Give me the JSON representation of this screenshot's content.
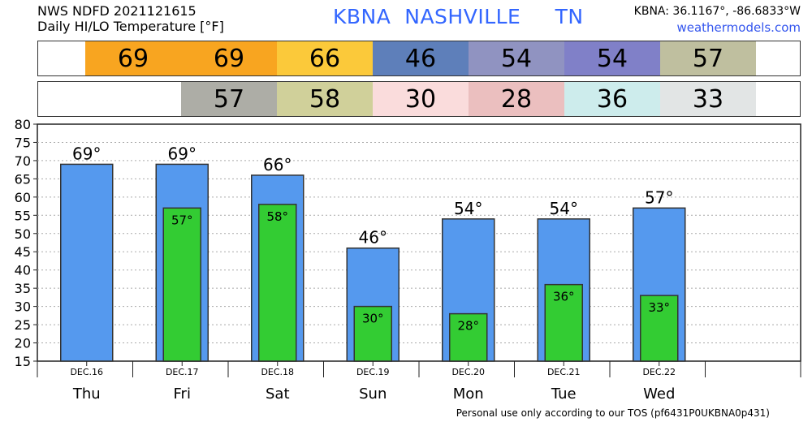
{
  "header": {
    "line1": "NWS NDFD 2021121615",
    "line2": "Daily HI/LO Temperature [°F]",
    "station": "KBNA  NASHVILLE     TN",
    "coords": "KBNA: 36.1167°, -86.6833°W",
    "site": "weathermodels.com"
  },
  "strips": {
    "hi": [
      {
        "value": "69",
        "color": "#f8a520"
      },
      {
        "value": "69",
        "color": "#f8a520"
      },
      {
        "value": "66",
        "color": "#fbc93a"
      },
      {
        "value": "46",
        "color": "#5e7fba"
      },
      {
        "value": "54",
        "color": "#9093c1"
      },
      {
        "value": "54",
        "color": "#8080c8"
      },
      {
        "value": "57",
        "color": "#bfbf9f"
      }
    ],
    "lo": [
      {
        "value": "57",
        "color": "#adada6"
      },
      {
        "value": "58",
        "color": "#d0d09a"
      },
      {
        "value": "30",
        "color": "#fadcdc"
      },
      {
        "value": "28",
        "color": "#ebbfbf"
      },
      {
        "value": "36",
        "color": "#cdecec"
      },
      {
        "value": "33",
        "color": "#e2e5e5"
      }
    ]
  },
  "chart_data": {
    "type": "bar",
    "categories": [
      "Thu",
      "Fri",
      "Sat",
      "Sun",
      "Mon",
      "Tue",
      "Wed"
    ],
    "dates": [
      "DEC.16",
      "DEC.17",
      "DEC.18",
      "DEC.19",
      "DEC.20",
      "DEC.21",
      "DEC.22"
    ],
    "series": [
      {
        "values": [
          69,
          69,
          66,
          46,
          54,
          54,
          57
        ],
        "color": "#5599ee"
      },
      {
        "values": [
          null,
          57,
          58,
          30,
          28,
          36,
          33
        ],
        "color": "#33cc33"
      }
    ],
    "ylim": [
      15,
      80
    ],
    "yticks": [
      15,
      20,
      25,
      30,
      35,
      40,
      45,
      50,
      55,
      60,
      65,
      70,
      75,
      80
    ],
    "grid": true,
    "label_suffix": "°"
  },
  "footer": "Personal use only according to our TOS (pf6431P0UKBNA0p431)"
}
